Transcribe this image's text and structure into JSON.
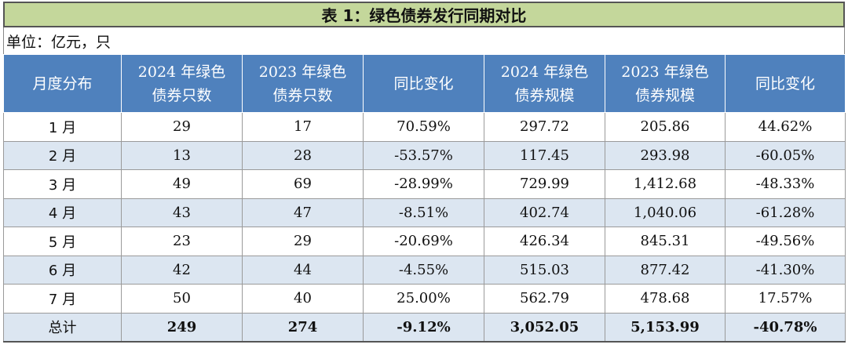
{
  "title": "表 1：绿色债券发行同期对比",
  "unit": "单位：亿元，只",
  "headers": [
    [
      "月度分布"
    ],
    [
      "2024 年绿色",
      "债券只数"
    ],
    [
      "2023 年绿色",
      "债券只数"
    ],
    [
      "同比变化"
    ],
    [
      "2024 年绿色",
      "债券规模"
    ],
    [
      "2023 年绿色",
      "债券规模"
    ],
    [
      "同比变化"
    ]
  ],
  "rows": [
    [
      "1 月",
      "29",
      "17",
      "70.59%",
      "297.72",
      "205.86",
      "44.62%"
    ],
    [
      "2 月",
      "13",
      "28",
      "-53.57%",
      "117.45",
      "293.98",
      "-60.05%"
    ],
    [
      "3 月",
      "49",
      "69",
      "-28.99%",
      "729.99",
      "1,412.68",
      "-48.33%"
    ],
    [
      "4 月",
      "43",
      "47",
      "-8.51%",
      "402.74",
      "1,040.06",
      "-61.28%"
    ],
    [
      "5 月",
      "23",
      "29",
      "-20.69%",
      "426.34",
      "845.31",
      "-49.56%"
    ],
    [
      "6 月",
      "42",
      "44",
      "-4.55%",
      "515.03",
      "877.42",
      "-41.30%"
    ],
    [
      "7 月",
      "50",
      "40",
      "25.00%",
      "562.79",
      "478.68",
      "17.57%"
    ]
  ],
  "total": [
    "总计",
    "249",
    "274",
    "-9.12%",
    "3,052.05",
    "5,153.99",
    "-40.78%"
  ],
  "colors": {
    "title_bg": "#c4d79b",
    "header_bg": "#4f81bd",
    "band_bg": "#dce6f1"
  }
}
